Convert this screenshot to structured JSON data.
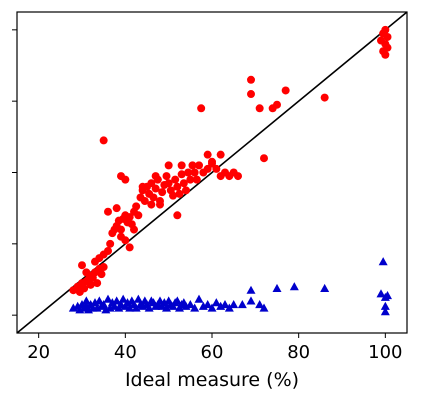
{
  "chart_data": {
    "type": "scatter",
    "title": "",
    "xlabel": "Ideal measure (%)",
    "ylabel": "",
    "xlim": [
      15,
      105
    ],
    "ylim": [
      15,
      105
    ],
    "xticks": [
      20,
      40,
      60,
      80,
      100
    ],
    "xtick_labels": [
      "20",
      "40",
      "60",
      "80",
      "100"
    ],
    "yticks": [
      20,
      40,
      60,
      80,
      100
    ],
    "ytick_labels": [],
    "grid": false,
    "reference_line": {
      "from": [
        15,
        15
      ],
      "to": [
        105,
        105
      ],
      "color": "#000000"
    },
    "colors": {
      "red_series": "#ff0000",
      "blue_series": "#0000cc",
      "axes": "#000000",
      "background": "#ffffff"
    },
    "series": [
      {
        "marker": "circle",
        "color": "#ff0000",
        "points": [
          [
            28,
            27
          ],
          [
            29,
            28
          ],
          [
            29.5,
            26.5
          ],
          [
            30,
            29
          ],
          [
            30.5,
            27.5
          ],
          [
            31,
            29.5
          ],
          [
            31,
            32
          ],
          [
            31.5,
            30
          ],
          [
            32,
            28.5
          ],
          [
            32,
            31
          ],
          [
            32.5,
            30.5
          ],
          [
            33,
            32
          ],
          [
            33.5,
            29
          ],
          [
            34,
            33
          ],
          [
            34.5,
            31.5
          ],
          [
            35,
            33.5
          ],
          [
            34,
            36
          ],
          [
            35,
            37
          ],
          [
            36,
            38
          ],
          [
            36.5,
            40
          ],
          [
            37,
            43
          ],
          [
            37.5,
            44
          ],
          [
            38,
            45
          ],
          [
            38.5,
            46.5
          ],
          [
            39,
            44
          ],
          [
            39.5,
            47
          ],
          [
            40,
            48
          ],
          [
            40.5,
            46
          ],
          [
            41,
            47.5
          ],
          [
            41.5,
            45.5
          ],
          [
            42,
            49
          ],
          [
            42.5,
            50.5
          ],
          [
            39,
            42
          ],
          [
            40,
            41
          ],
          [
            41,
            39
          ],
          [
            43,
            48
          ],
          [
            43.5,
            53
          ],
          [
            44,
            55
          ],
          [
            44.5,
            52
          ],
          [
            45,
            56
          ],
          [
            45.5,
            54
          ],
          [
            46,
            57
          ],
          [
            46.5,
            53
          ],
          [
            47,
            55.5
          ],
          [
            47.5,
            58
          ],
          [
            48,
            52
          ],
          [
            48.5,
            54.5
          ],
          [
            49,
            56.5
          ],
          [
            49.5,
            59
          ],
          [
            50,
            57
          ],
          [
            50.5,
            55
          ],
          [
            51,
            53.5
          ],
          [
            51.5,
            58
          ],
          [
            52,
            56
          ],
          [
            52.5,
            54
          ],
          [
            53,
            59.5
          ],
          [
            53.5,
            57
          ],
          [
            54,
            55
          ],
          [
            54.5,
            60
          ],
          [
            55,
            58
          ],
          [
            55.5,
            62
          ],
          [
            56,
            60
          ],
          [
            56.5,
            58
          ],
          [
            57,
            62
          ],
          [
            58,
            60
          ],
          [
            59,
            61
          ],
          [
            60,
            62.5
          ],
          [
            61,
            61
          ],
          [
            62,
            59
          ],
          [
            63,
            60
          ],
          [
            64,
            59
          ],
          [
            65,
            60
          ],
          [
            66,
            59
          ],
          [
            35,
            69
          ],
          [
            39,
            59
          ],
          [
            40,
            58
          ],
          [
            44,
            56
          ],
          [
            47,
            59
          ],
          [
            50,
            62
          ],
          [
            53,
            62
          ],
          [
            57.5,
            78
          ],
          [
            59,
            65
          ],
          [
            60,
            63
          ],
          [
            62,
            65
          ],
          [
            69,
            86
          ],
          [
            69,
            82
          ],
          [
            71,
            78
          ],
          [
            74,
            78
          ],
          [
            75,
            79
          ],
          [
            77,
            83
          ],
          [
            72,
            64
          ],
          [
            86,
            81
          ],
          [
            52,
            48
          ],
          [
            48,
            51
          ],
          [
            46,
            51
          ],
          [
            42,
            44
          ],
          [
            38,
            50
          ],
          [
            36,
            49
          ],
          [
            33,
            35
          ],
          [
            30,
            34
          ],
          [
            99,
            97
          ],
          [
            99.5,
            99
          ],
          [
            100,
            96
          ],
          [
            100.5,
            98
          ],
          [
            100,
            100
          ],
          [
            99.5,
            94
          ],
          [
            100.5,
            95
          ],
          [
            100,
            93
          ]
        ]
      },
      {
        "marker": "triangle",
        "color": "#0000cc",
        "points": [
          [
            28,
            22
          ],
          [
            29,
            22.5
          ],
          [
            29.5,
            21.5
          ],
          [
            30,
            23
          ],
          [
            30.5,
            22
          ],
          [
            31,
            22.5
          ],
          [
            31,
            24
          ],
          [
            31.5,
            21.5
          ],
          [
            32,
            23
          ],
          [
            32.5,
            22
          ],
          [
            33,
            23.5
          ],
          [
            33.5,
            22
          ],
          [
            34,
            24
          ],
          [
            34.5,
            22.5
          ],
          [
            35,
            23
          ],
          [
            35.5,
            21.5
          ],
          [
            36,
            24.5
          ],
          [
            36.5,
            22
          ],
          [
            37,
            23.5
          ],
          [
            37.5,
            22.5
          ],
          [
            38,
            24
          ],
          [
            38.5,
            22
          ],
          [
            39,
            23
          ],
          [
            39.5,
            24.5
          ],
          [
            40,
            22.5
          ],
          [
            40.5,
            23.5
          ],
          [
            41,
            22
          ],
          [
            41.5,
            24
          ],
          [
            42,
            23
          ],
          [
            42.5,
            22
          ],
          [
            43,
            24.5
          ],
          [
            43.5,
            23
          ],
          [
            44,
            22.5
          ],
          [
            44.5,
            24
          ],
          [
            45,
            23
          ],
          [
            45.5,
            22
          ],
          [
            46,
            24
          ],
          [
            46.5,
            23.5
          ],
          [
            47,
            22.5
          ],
          [
            47.5,
            23
          ],
          [
            48,
            24
          ],
          [
            48.5,
            22.5
          ],
          [
            49,
            23.5
          ],
          [
            49.5,
            22
          ],
          [
            50,
            24
          ],
          [
            50.5,
            23
          ],
          [
            51,
            22.5
          ],
          [
            51.5,
            23.5
          ],
          [
            52,
            24
          ],
          [
            52.5,
            22
          ],
          [
            53,
            23
          ],
          [
            53.5,
            23.5
          ],
          [
            54,
            22.5
          ],
          [
            55,
            23
          ],
          [
            56,
            22
          ],
          [
            57,
            24.5
          ],
          [
            58,
            22.5
          ],
          [
            59,
            23
          ],
          [
            60,
            22
          ],
          [
            61,
            23.5
          ],
          [
            62,
            22.5
          ],
          [
            63,
            23
          ],
          [
            64,
            22
          ],
          [
            65,
            23
          ],
          [
            67,
            23
          ],
          [
            69,
            27
          ],
          [
            69,
            24
          ],
          [
            71,
            23
          ],
          [
            72,
            22
          ],
          [
            75,
            27.5
          ],
          [
            79,
            28
          ],
          [
            86,
            27.5
          ],
          [
            99,
            26
          ],
          [
            99.5,
            35
          ],
          [
            100,
            25
          ],
          [
            100.5,
            25.5
          ],
          [
            100,
            22.5
          ],
          [
            100,
            21
          ]
        ]
      }
    ]
  }
}
